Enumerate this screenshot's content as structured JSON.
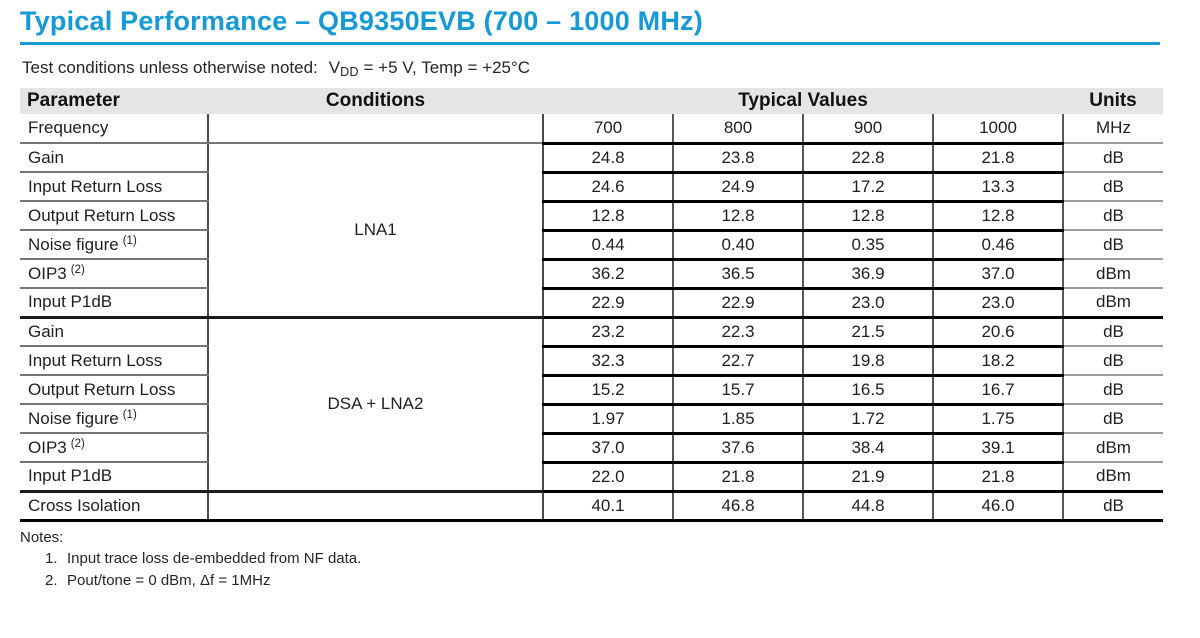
{
  "page": {
    "title": "Typical Performance – QB9350EVB (700 – 1000 MHz)"
  },
  "test_conditions": {
    "label": "Test conditions unless otherwise noted:",
    "var": "V",
    "var_sub": "DD",
    "rest": " = +5 V, Temp = +25°C"
  },
  "colors": {
    "accent_blue": "#1599d7",
    "header_bg": "#e5e5e5"
  },
  "table": {
    "headers": {
      "parameter": "Parameter",
      "conditions": "Conditions",
      "typical_values": "Typical Values",
      "units": "Units"
    },
    "frequency_row": {
      "param": "Frequency",
      "values": [
        "700",
        "800",
        "900",
        "1000"
      ],
      "unit": "MHz"
    },
    "sections": [
      {
        "condition": "LNA1",
        "rows": [
          {
            "param": "Gain",
            "values": [
              "24.8",
              "23.8",
              "22.8",
              "21.8"
            ],
            "unit": "dB"
          },
          {
            "param": "Input Return Loss",
            "values": [
              "24.6",
              "24.9",
              "17.2",
              "13.3"
            ],
            "unit": "dB"
          },
          {
            "param": "Output Return Loss",
            "values": [
              "12.8",
              "12.8",
              "12.8",
              "12.8"
            ],
            "unit": "dB"
          },
          {
            "param": "Noise figure",
            "sup": "(1)",
            "values": [
              "0.44",
              "0.40",
              "0.35",
              "0.46"
            ],
            "unit": "dB"
          },
          {
            "param": "OIP3",
            "sup": "(2)",
            "values": [
              "36.2",
              "36.5",
              "36.9",
              "37.0"
            ],
            "unit": "dBm"
          },
          {
            "param": "Input P1dB",
            "values": [
              "22.9",
              "22.9",
              "23.0",
              "23.0"
            ],
            "unit": "dBm"
          }
        ]
      },
      {
        "condition": "DSA + LNA2",
        "rows": [
          {
            "param": "Gain",
            "values": [
              "23.2",
              "22.3",
              "21.5",
              "20.6"
            ],
            "unit": "dB"
          },
          {
            "param": "Input Return Loss",
            "values": [
              "32.3",
              "22.7",
              "19.8",
              "18.2"
            ],
            "unit": "dB"
          },
          {
            "param": "Output Return Loss",
            "values": [
              "15.2",
              "15.7",
              "16.5",
              "16.7"
            ],
            "unit": "dB"
          },
          {
            "param": "Noise figure",
            "sup": "(1)",
            "values": [
              "1.97",
              "1.85",
              "1.72",
              "1.75"
            ],
            "unit": "dB"
          },
          {
            "param": "OIP3",
            "sup": "(2)",
            "values": [
              "37.0",
              "37.6",
              "38.4",
              "39.1"
            ],
            "unit": "dBm"
          },
          {
            "param": "Input P1dB",
            "values": [
              "22.0",
              "21.8",
              "21.9",
              "21.8"
            ],
            "unit": "dBm"
          }
        ]
      }
    ],
    "cross_isolation_row": {
      "param": "Cross Isolation",
      "values": [
        "40.1",
        "46.8",
        "44.8",
        "46.0"
      ],
      "unit": "dB"
    }
  },
  "notes": {
    "label": "Notes:",
    "items": [
      {
        "num": "1.",
        "text": "Input trace loss de-embedded from NF data."
      },
      {
        "num": "2.",
        "text": "Pout/tone = 0 dBm, Δf = 1MHz"
      }
    ]
  }
}
